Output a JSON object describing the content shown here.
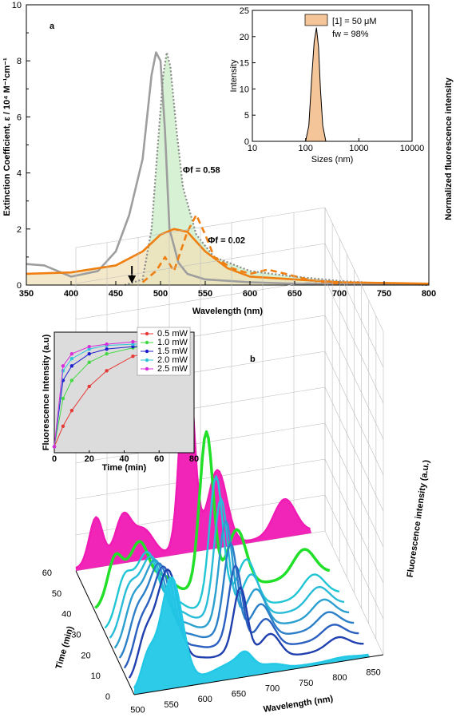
{
  "chart_data": [
    {
      "type": "line",
      "panel_label": "a",
      "xlabel": "Wavelength (nm)",
      "ylabel": "Extinction Coefficient, ε / 10⁴ M⁻¹cm⁻¹",
      "y2label": "Normalized fluorescence intensity",
      "xlim": [
        350,
        800
      ],
      "ylim": [
        0,
        10
      ],
      "xticks": [
        350,
        400,
        450,
        500,
        550,
        600,
        650,
        700,
        750,
        800
      ],
      "yticks": [
        0,
        2,
        4,
        6,
        8,
        10
      ],
      "annotations": [
        {
          "text": "Φf = 0.58",
          "x": 525,
          "y": 4.0
        },
        {
          "text": "Φf = 0.02",
          "x": 553,
          "y": 1.5
        }
      ],
      "arrow_x": 468,
      "series": [
        {
          "color": "#9e9e9e",
          "style": "solid",
          "x": [
            350,
            370,
            400,
            430,
            450,
            465,
            480,
            490,
            495,
            500,
            505,
            510,
            520,
            530,
            550,
            600,
            650,
            700,
            800
          ],
          "y": [
            0.75,
            0.7,
            0.3,
            0.5,
            1.2,
            2.5,
            4.5,
            7.5,
            8.3,
            8.0,
            5.5,
            2.0,
            0.8,
            0.4,
            0.2,
            0.1,
            0.05,
            0.05,
            0.05
          ]
        },
        {
          "color": "#8a8a8a",
          "style": "dotted",
          "fill": "#c8ecc4",
          "x": [
            460,
            480,
            490,
            497,
            503,
            507,
            511,
            518,
            525,
            540,
            560,
            600,
            650,
            700,
            750,
            800
          ],
          "y": [
            0,
            0.2,
            2.0,
            5.0,
            7.5,
            8.3,
            7.8,
            5.5,
            3.5,
            1.8,
            1.0,
            0.5,
            0.3,
            0.15,
            0.05,
            0
          ]
        },
        {
          "color": "#ef7f11",
          "style": "solid",
          "fill": "#f0e0b8",
          "x": [
            350,
            400,
            450,
            480,
            500,
            515,
            530,
            550,
            575,
            600,
            650,
            700,
            800
          ],
          "y": [
            0.4,
            0.45,
            0.7,
            1.2,
            1.8,
            2.0,
            1.9,
            1.2,
            0.6,
            0.3,
            0.2,
            0.1,
            0.05
          ]
        },
        {
          "color": "#ef7f11",
          "style": "dashed",
          "x": [
            480,
            495,
            505,
            515,
            530,
            540,
            550,
            560,
            580,
            600,
            620,
            640,
            670,
            700
          ],
          "y": [
            0.1,
            0.5,
            1.0,
            0.5,
            1.9,
            2.5,
            1.8,
            1.0,
            0.6,
            0.4,
            0.55,
            0.4,
            0.15,
            0.05
          ]
        }
      ]
    },
    {
      "type": "area",
      "panel_label": "inset",
      "xlabel": "Sizes (nm)",
      "ylabel": "Intensity",
      "xscale": "log",
      "xlim": [
        10,
        10000
      ],
      "ylim": [
        0,
        25
      ],
      "xticks": [
        10,
        100,
        1000,
        10000
      ],
      "yticks": [
        0,
        5,
        10,
        15,
        20,
        25
      ],
      "legend": {
        "label": "[1] = 50 μM",
        "label2": "fw = 98%",
        "color": "#f5c59a"
      },
      "series": [
        {
          "color": "#f5c59a",
          "x": [
            100,
            115,
            130,
            145,
            160,
            175,
            190,
            210,
            240
          ],
          "y": [
            0,
            3,
            12,
            19,
            21.7,
            18,
            10,
            3,
            0
          ]
        }
      ]
    },
    {
      "type": "line",
      "panel_label": "inset-b",
      "xlabel": "Time (min)",
      "ylabel": "Fluorescence Intensity (a.u)",
      "xlim": [
        0,
        80
      ],
      "xticks": [
        0,
        20,
        40,
        60,
        80
      ],
      "series": [
        {
          "name": "0.5 mW",
          "color": "#e53935",
          "x": [
            0,
            5,
            10,
            20,
            30,
            45,
            60,
            70
          ],
          "y": [
            0.05,
            0.22,
            0.35,
            0.55,
            0.68,
            0.8,
            0.85,
            0.87
          ]
        },
        {
          "name": "1.0 mW",
          "color": "#43d843",
          "x": [
            0,
            5,
            10,
            20,
            30,
            45,
            60,
            70
          ],
          "y": [
            0.05,
            0.45,
            0.6,
            0.75,
            0.82,
            0.87,
            0.89,
            0.9
          ]
        },
        {
          "name": "1.5 mW",
          "color": "#1e1ecf",
          "x": [
            0,
            5,
            10,
            20,
            30,
            45,
            60,
            70
          ],
          "y": [
            0.05,
            0.6,
            0.72,
            0.82,
            0.86,
            0.88,
            0.9,
            0.91
          ]
        },
        {
          "name": "2.0 mW",
          "color": "#31c3d8",
          "x": [
            0,
            5,
            10,
            20,
            30,
            45,
            60,
            70
          ],
          "y": [
            0.05,
            0.68,
            0.78,
            0.86,
            0.89,
            0.9,
            0.91,
            0.92
          ]
        },
        {
          "name": "2.5 mW",
          "color": "#d82ed8",
          "x": [
            0,
            5,
            10,
            20,
            30,
            45,
            60,
            70
          ],
          "y": [
            0.05,
            0.72,
            0.82,
            0.88,
            0.9,
            0.92,
            0.93,
            0.94
          ]
        }
      ]
    },
    {
      "type": "line",
      "panel_label": "b",
      "xlabel": "Wavelength (nm)",
      "ylabel": "Time (min)",
      "zlabel": "Fluorescence intensity (a.u.)",
      "xticks": [
        500,
        550,
        600,
        650,
        700,
        750,
        800,
        850
      ],
      "yticks": [
        0,
        10,
        20,
        30,
        40,
        50,
        60
      ],
      "series": [
        {
          "time": 0,
          "color": "#22c8e6"
        },
        {
          "time": 5,
          "color": "#1f3fae"
        },
        {
          "time": 10,
          "color": "#2a5fbf"
        },
        {
          "time": 15,
          "color": "#2b7fc8"
        },
        {
          "time": 20,
          "color": "#2a9fd0"
        },
        {
          "time": 25,
          "color": "#28bcd8"
        },
        {
          "time": 30,
          "color": "#20c6d4"
        },
        {
          "time": 40,
          "color": "#22e02a"
        },
        {
          "time": 60,
          "color": "#f01ab4"
        }
      ]
    }
  ]
}
